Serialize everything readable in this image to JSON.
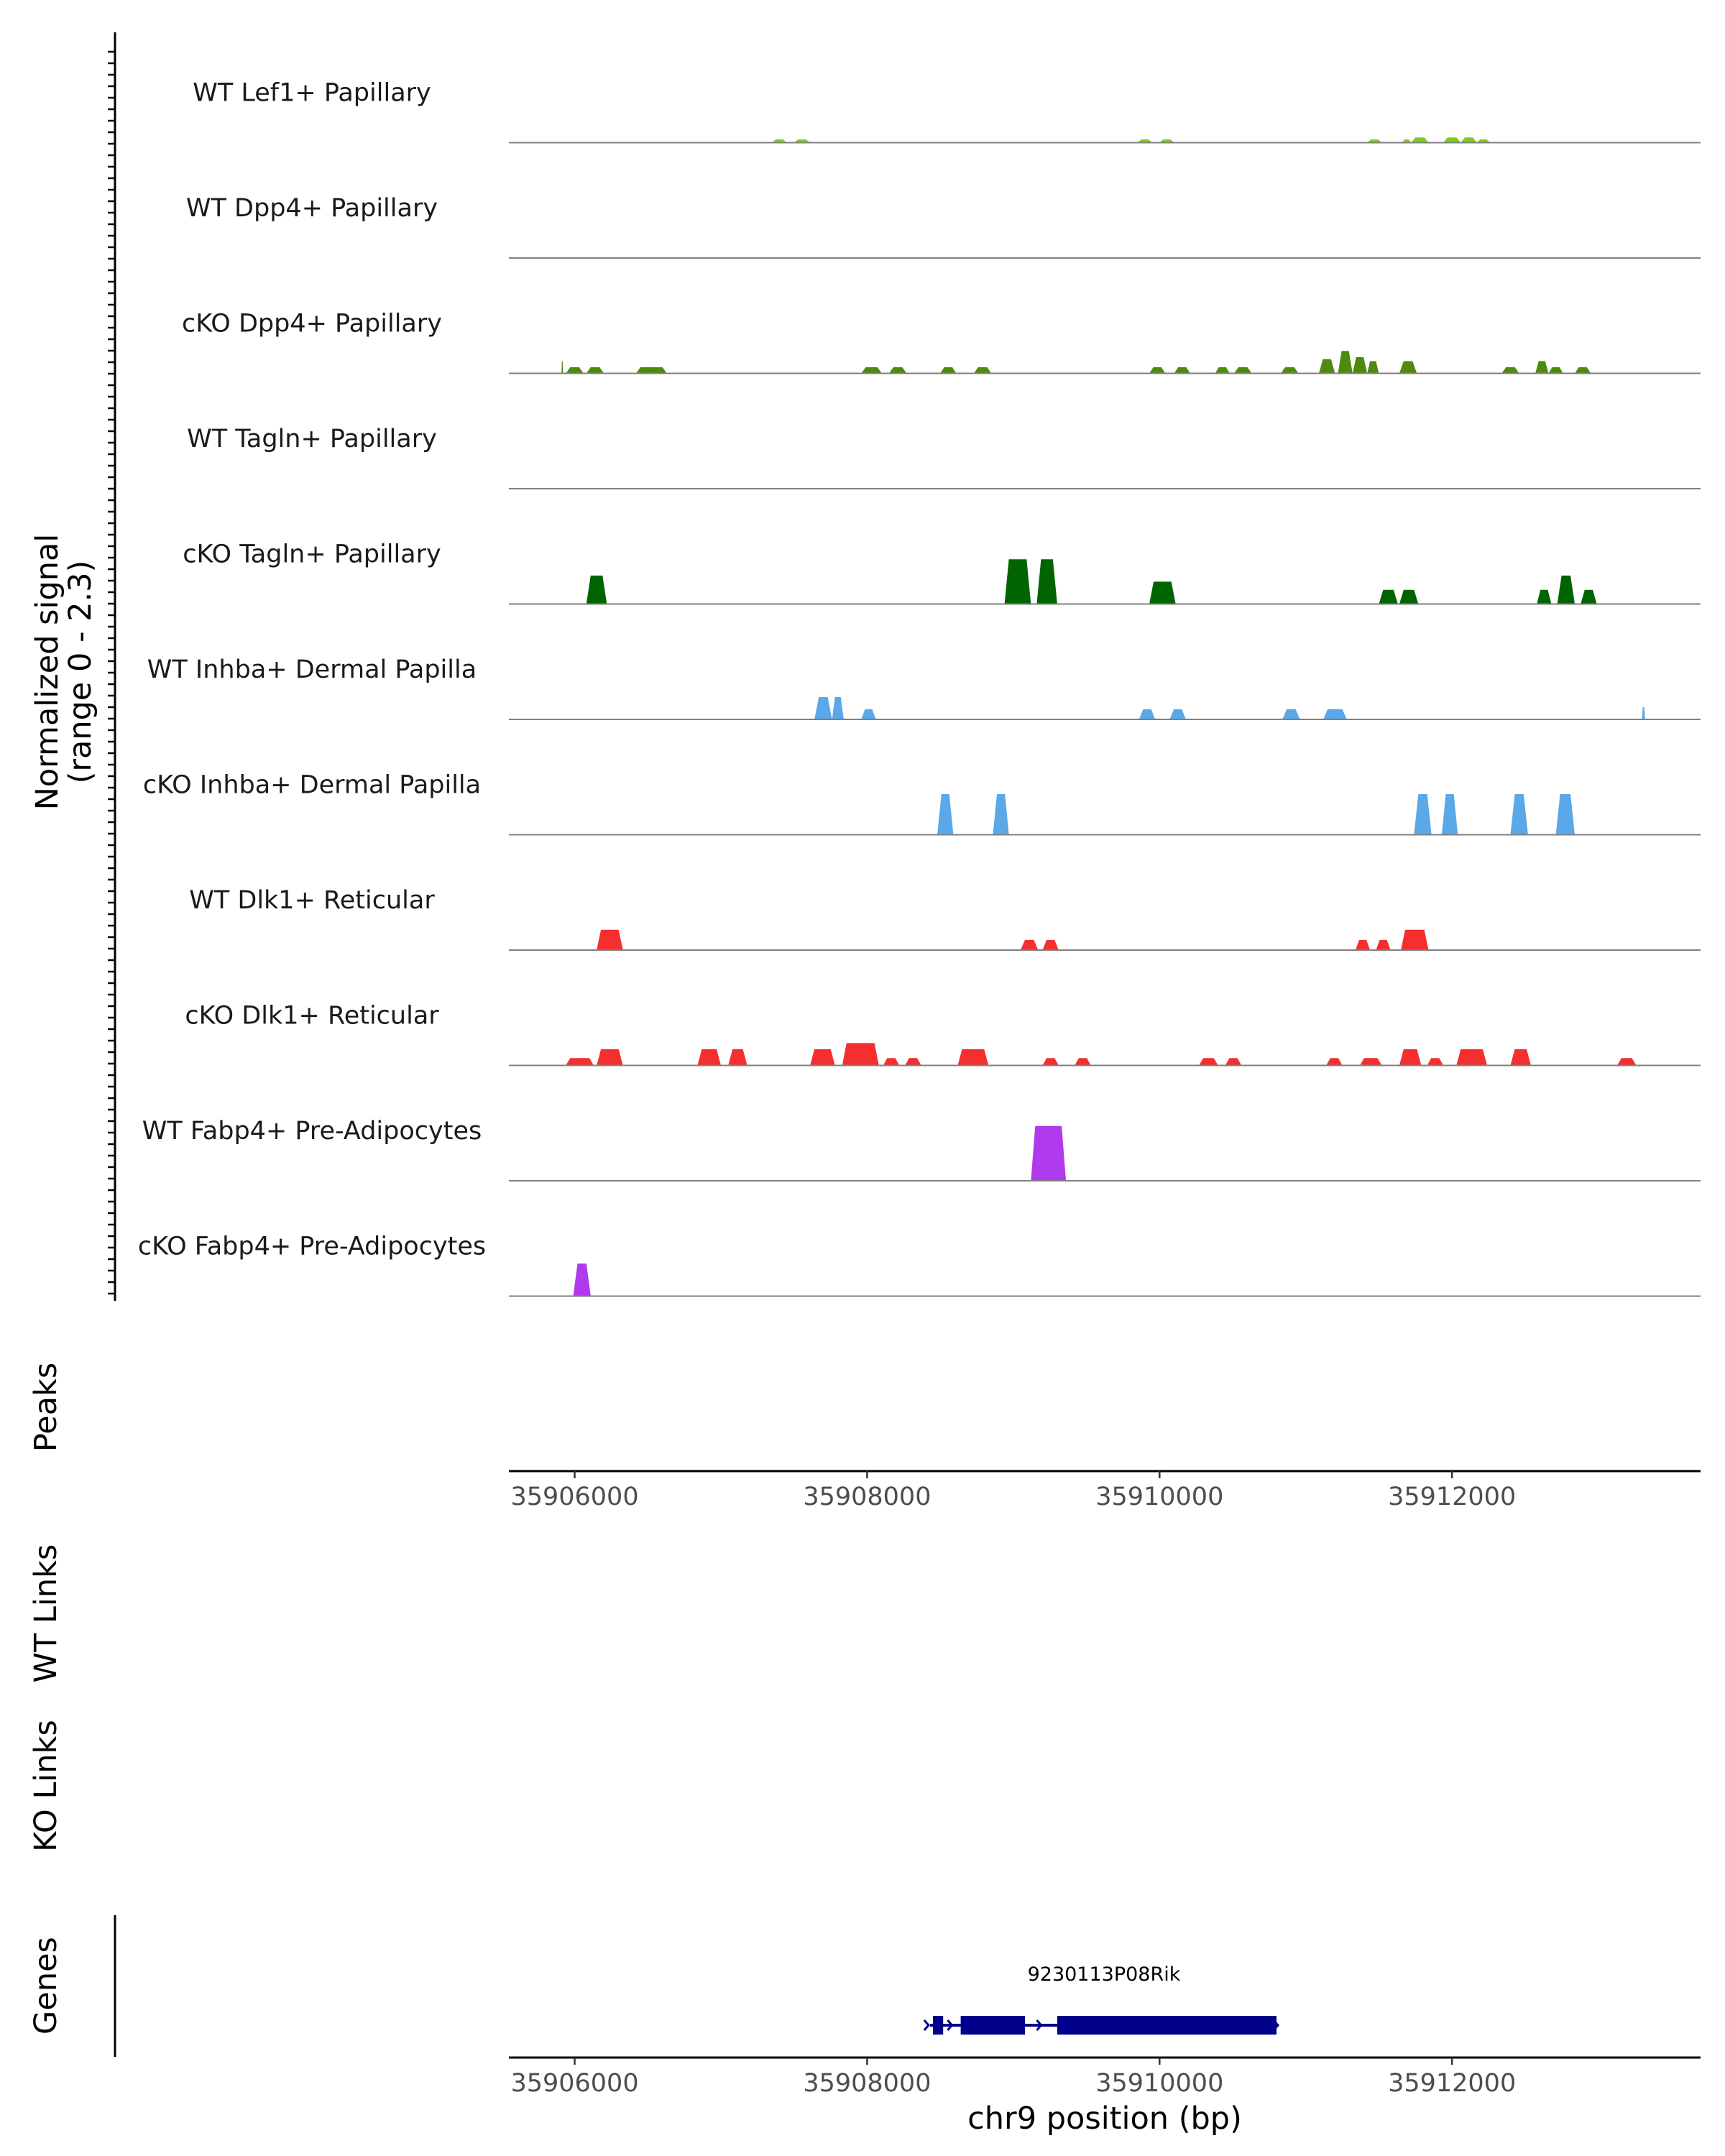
{
  "chart_data": {
    "type": "area",
    "chromosome": "chr9",
    "xlim": [
      35905550,
      35913700
    ],
    "signal_range": [
      0,
      2.3
    ],
    "colors": {
      "lef1": "#7CCD1B",
      "dpp4": "#4E8A0C",
      "tagln": "#006400",
      "inhba": "#5BA8E8",
      "dlk1": "#F52F2F",
      "fabp4": "#B03AED",
      "gene": "#00008B",
      "baseline": "#808080"
    },
    "signal_axis_label": "Normalized signal",
    "signal_axis_sublabel": "(range 0 - 2.3)",
    "section_labels": {
      "peaks": "Peaks",
      "wt_links": "WT Links",
      "ko_links": "KO Links",
      "genes": "Genes"
    },
    "x_ticks": [
      35906000,
      35908000,
      35910000,
      35912000
    ],
    "x_tick_labels": [
      "35906000",
      "35908000",
      "35910000",
      "35912000"
    ],
    "xlabel": "chr9 position (bp)",
    "tracks": [
      {
        "name": "WT Lef1+ Papillary",
        "color_key": "lef1",
        "peaks": [
          [
            35907350,
            35907450,
            0.08
          ],
          [
            35907500,
            35907610,
            0.08
          ],
          [
            35909850,
            35909950,
            0.08
          ],
          [
            35910000,
            35910100,
            0.08
          ],
          [
            35911420,
            35911520,
            0.08
          ],
          [
            35911660,
            35911720,
            0.08
          ],
          [
            35911720,
            35911840,
            0.13
          ],
          [
            35911940,
            35912060,
            0.13
          ],
          [
            35912060,
            35912170,
            0.13
          ],
          [
            35912170,
            35912260,
            0.08
          ]
        ]
      },
      {
        "name": "WT Dpp4+ Papillary",
        "color_key": "dpp4",
        "peaks": []
      },
      {
        "name": "cKO Dpp4+ Papillary",
        "color_key": "dpp4",
        "peaks": [
          [
            35905910,
            35905920,
            0.3
          ],
          [
            35905940,
            35906060,
            0.15
          ],
          [
            35906080,
            35906200,
            0.15
          ],
          [
            35906420,
            35906630,
            0.15
          ],
          [
            35907960,
            35908100,
            0.15
          ],
          [
            35908150,
            35908270,
            0.15
          ],
          [
            35908500,
            35908610,
            0.15
          ],
          [
            35908730,
            35908850,
            0.15
          ],
          [
            35909930,
            35910040,
            0.15
          ],
          [
            35910100,
            35910210,
            0.15
          ],
          [
            35910380,
            35910480,
            0.15
          ],
          [
            35910510,
            35910630,
            0.15
          ],
          [
            35910830,
            35910950,
            0.15
          ],
          [
            35911090,
            35911200,
            0.35
          ],
          [
            35911220,
            35911320,
            0.55
          ],
          [
            35911320,
            35911420,
            0.4
          ],
          [
            35911420,
            35911500,
            0.3
          ],
          [
            35911640,
            35911760,
            0.3
          ],
          [
            35912340,
            35912460,
            0.15
          ],
          [
            35912570,
            35912660,
            0.3
          ],
          [
            35912660,
            35912760,
            0.15
          ],
          [
            35912840,
            35912950,
            0.15
          ]
        ]
      },
      {
        "name": "WT Tagln+ Papillary",
        "color_key": "tagln",
        "peaks": []
      },
      {
        "name": "cKO Tagln+ Papillary",
        "color_key": "tagln",
        "peaks": [
          [
            35906080,
            35906220,
            0.7
          ],
          [
            35908940,
            35909120,
            1.1
          ],
          [
            35909160,
            35909300,
            1.1
          ],
          [
            35909930,
            35910110,
            0.55
          ],
          [
            35911500,
            35911630,
            0.35
          ],
          [
            35911640,
            35911770,
            0.35
          ],
          [
            35912580,
            35912680,
            0.35
          ],
          [
            35912720,
            35912840,
            0.7
          ],
          [
            35912880,
            35912990,
            0.35
          ]
        ]
      },
      {
        "name": "WT Inhba+ Dermal Papilla",
        "color_key": "inhba",
        "peaks": [
          [
            35907640,
            35907760,
            0.55
          ],
          [
            35907760,
            35907840,
            0.55
          ],
          [
            35907960,
            35908060,
            0.25
          ],
          [
            35909860,
            35909970,
            0.25
          ],
          [
            35910070,
            35910180,
            0.25
          ],
          [
            35910840,
            35910960,
            0.25
          ],
          [
            35911120,
            35911280,
            0.25
          ],
          [
            35913300,
            35913320,
            0.3
          ]
        ]
      },
      {
        "name": "cKO Inhba+ Dermal Papilla",
        "color_key": "inhba",
        "peaks": [
          [
            35908480,
            35908590,
            1.0
          ],
          [
            35908860,
            35908970,
            1.0
          ],
          [
            35911740,
            35911860,
            1.0
          ],
          [
            35911930,
            35912040,
            1.0
          ],
          [
            35912400,
            35912520,
            1.0
          ],
          [
            35912710,
            35912840,
            1.0
          ]
        ]
      },
      {
        "name": "WT Dlk1+ Reticular",
        "color_key": "dlk1",
        "peaks": [
          [
            35906150,
            35906330,
            0.5
          ],
          [
            35909050,
            35909170,
            0.25
          ],
          [
            35909200,
            35909310,
            0.25
          ],
          [
            35911340,
            35911440,
            0.25
          ],
          [
            35911480,
            35911580,
            0.25
          ],
          [
            35911650,
            35911840,
            0.5
          ]
        ]
      },
      {
        "name": "cKO Dlk1+ Reticular",
        "color_key": "dlk1",
        "peaks": [
          [
            35905940,
            35906130,
            0.18
          ],
          [
            35906150,
            35906330,
            0.4
          ],
          [
            35906840,
            35907000,
            0.4
          ],
          [
            35907050,
            35907180,
            0.4
          ],
          [
            35907610,
            35907780,
            0.4
          ],
          [
            35907830,
            35908080,
            0.55
          ],
          [
            35908110,
            35908220,
            0.18
          ],
          [
            35908260,
            35908370,
            0.18
          ],
          [
            35908620,
            35908830,
            0.4
          ],
          [
            35909200,
            35909310,
            0.18
          ],
          [
            35909420,
            35909530,
            0.18
          ],
          [
            35910270,
            35910400,
            0.18
          ],
          [
            35910450,
            35910560,
            0.18
          ],
          [
            35911140,
            35911250,
            0.18
          ],
          [
            35911370,
            35911520,
            0.18
          ],
          [
            35911640,
            35911790,
            0.4
          ],
          [
            35911830,
            35911940,
            0.18
          ],
          [
            35912030,
            35912240,
            0.4
          ],
          [
            35912400,
            35912540,
            0.4
          ],
          [
            35913130,
            35913260,
            0.18
          ]
        ]
      },
      {
        "name": "WT Fabp4+ Pre-Adipocytes",
        "color_key": "fabp4",
        "peaks": [
          [
            35909120,
            35909360,
            1.35
          ]
        ]
      },
      {
        "name": "cKO Fabp4+ Pre-Adipocytes",
        "color_key": "fabp4",
        "peaks": [
          [
            35905990,
            35906110,
            0.8
          ]
        ]
      }
    ],
    "gene": {
      "name": "9230113P08Rik",
      "start": 35908430,
      "end": 35910800,
      "strand": "+",
      "exons": [
        [
          35908450,
          35908520
        ],
        [
          35908640,
          35909080
        ],
        [
          35909300,
          35910800
        ]
      ]
    }
  }
}
